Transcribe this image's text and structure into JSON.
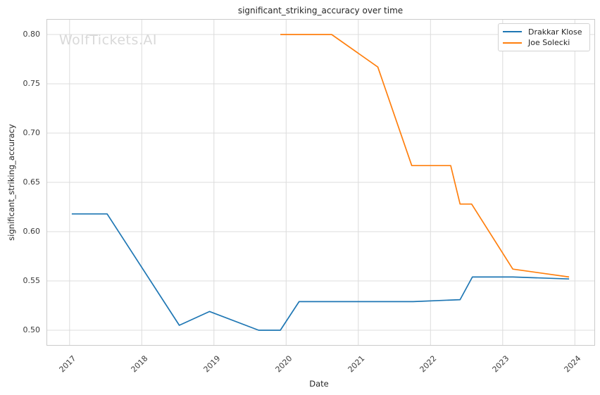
{
  "watermark": "WolfTickets.AI",
  "chart_data": {
    "type": "line",
    "title": "significant_striking_accuracy over time",
    "xlabel": "Date",
    "ylabel": "significant_striking_accuracy",
    "xlim": [
      2016.69,
      2024.27
    ],
    "ylim": [
      0.485,
      0.815
    ],
    "xticks": [
      2017,
      2018,
      2019,
      2020,
      2021,
      2022,
      2023,
      2024
    ],
    "yticks": [
      0.5,
      0.55,
      0.6,
      0.65,
      0.7,
      0.75,
      0.8
    ],
    "grid": true,
    "legend_position": "upper right",
    "series": [
      {
        "name": "Drakkar Klose",
        "color": "#1f77b4",
        "x": [
          2017.03,
          2017.52,
          2018.52,
          2018.94,
          2019.62,
          2019.92,
          2020.18,
          2021.76,
          2022.41,
          2022.58,
          2023.14,
          2023.92
        ],
        "y": [
          0.618,
          0.618,
          0.505,
          0.519,
          0.5,
          0.5,
          0.529,
          0.529,
          0.531,
          0.554,
          0.554,
          0.552
        ]
      },
      {
        "name": "Joe Solecki",
        "color": "#ff7f0e",
        "x": [
          2019.92,
          2020.63,
          2021.27,
          2021.74,
          2022.28,
          2022.41,
          2022.57,
          2023.14,
          2023.92
        ],
        "y": [
          0.8,
          0.8,
          0.767,
          0.667,
          0.667,
          0.628,
          0.628,
          0.562,
          0.554
        ]
      }
    ]
  }
}
